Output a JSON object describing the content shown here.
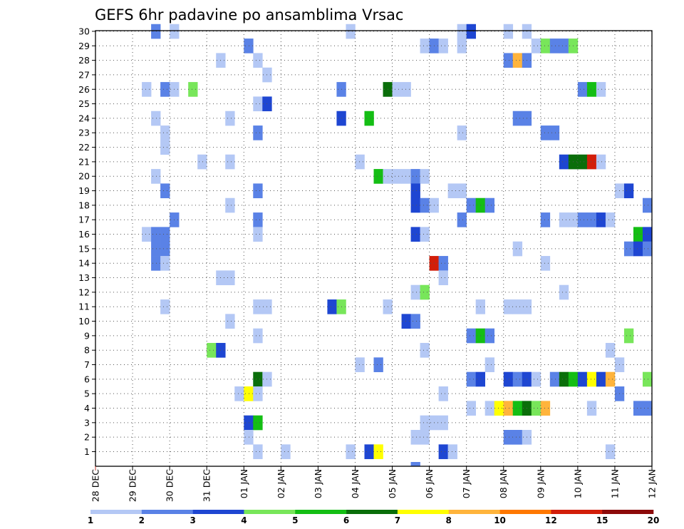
{
  "chart_data": {
    "type": "heatmap",
    "title": "GEFS 6hr padavine po ansamblima Vrsac",
    "xlabel": "",
    "ylabel": "",
    "x_tick_labels": [
      "28 DEC",
      "29 DEC",
      "30 DEC",
      "31 DEC",
      "01 JAN",
      "02 JAN",
      "03 JAN",
      "04 JAN",
      "05 JAN",
      "06 JAN",
      "07 JAN",
      "08 JAN",
      "09 JAN",
      "10 JAN",
      "11 JAN",
      "12 JAN"
    ],
    "x_steps": 60,
    "steps_per_day": 4,
    "y_tick_labels": [
      "1",
      "2",
      "3",
      "4",
      "5",
      "6",
      "7",
      "8",
      "9",
      "10",
      "11",
      "12",
      "13",
      "14",
      "15",
      "16",
      "17",
      "18",
      "19",
      "20",
      "21",
      "22",
      "23",
      "24",
      "25",
      "26",
      "27",
      "28",
      "29",
      "30"
    ],
    "grid": true,
    "colorbar": {
      "thresholds": [
        "1",
        "2",
        "3",
        "4",
        "5",
        "6",
        "7",
        "8",
        "10",
        "12",
        "15",
        "20"
      ],
      "colors": [
        "#b4c8f5",
        "#5a82e6",
        "#1e46d2",
        "#78e65a",
        "#14be14",
        "#0a6e0a",
        "#ffff00",
        "#ffb43c",
        "#ff7800",
        "#d21e0a",
        "#8c0a0a"
      ]
    },
    "cells": [
      [
        30,
        6,
        1
      ],
      [
        30,
        8,
        0
      ],
      [
        30,
        27,
        0
      ],
      [
        30,
        39,
        0
      ],
      [
        30,
        40,
        2
      ],
      [
        30,
        44,
        0
      ],
      [
        30,
        46,
        0
      ],
      [
        29,
        16,
        1
      ],
      [
        29,
        35,
        0
      ],
      [
        29,
        36,
        1
      ],
      [
        29,
        37,
        0
      ],
      [
        29,
        39,
        0
      ],
      [
        29,
        47,
        0
      ],
      [
        29,
        48,
        3
      ],
      [
        29,
        49,
        1
      ],
      [
        29,
        50,
        1
      ],
      [
        29,
        51,
        3
      ],
      [
        28,
        13,
        0
      ],
      [
        28,
        17,
        0
      ],
      [
        28,
        44,
        1
      ],
      [
        28,
        45,
        7
      ],
      [
        28,
        46,
        1
      ],
      [
        27,
        18,
        0
      ],
      [
        26,
        5,
        0
      ],
      [
        26,
        7,
        1
      ],
      [
        26,
        8,
        0
      ],
      [
        26,
        10,
        3
      ],
      [
        26,
        26,
        1
      ],
      [
        26,
        31,
        5
      ],
      [
        26,
        32,
        0
      ],
      [
        26,
        33,
        0
      ],
      [
        26,
        52,
        1
      ],
      [
        26,
        53,
        4
      ],
      [
        26,
        54,
        0
      ],
      [
        25,
        17,
        0
      ],
      [
        25,
        18,
        2
      ],
      [
        24,
        6,
        0
      ],
      [
        24,
        14,
        0
      ],
      [
        24,
        26,
        2
      ],
      [
        24,
        29,
        4
      ],
      [
        24,
        45,
        1
      ],
      [
        24,
        46,
        1
      ],
      [
        23,
        7,
        0
      ],
      [
        23,
        17,
        1
      ],
      [
        23,
        39,
        0
      ],
      [
        23,
        48,
        1
      ],
      [
        23,
        49,
        1
      ],
      [
        22,
        7,
        0
      ],
      [
        21,
        11,
        0
      ],
      [
        21,
        14,
        0
      ],
      [
        21,
        28,
        0
      ],
      [
        21,
        50,
        2
      ],
      [
        21,
        51,
        5
      ],
      [
        21,
        52,
        5
      ],
      [
        21,
        53,
        9
      ],
      [
        21,
        54,
        0
      ],
      [
        20,
        6,
        0
      ],
      [
        20,
        30,
        4
      ],
      [
        20,
        31,
        0
      ],
      [
        20,
        32,
        0
      ],
      [
        20,
        33,
        0
      ],
      [
        20,
        34,
        1
      ],
      [
        20,
        35,
        0
      ],
      [
        19,
        7,
        1
      ],
      [
        19,
        17,
        1
      ],
      [
        19,
        34,
        2
      ],
      [
        19,
        38,
        0
      ],
      [
        19,
        39,
        0
      ],
      [
        19,
        56,
        0
      ],
      [
        19,
        57,
        2
      ],
      [
        18,
        14,
        0
      ],
      [
        18,
        34,
        2
      ],
      [
        18,
        35,
        1
      ],
      [
        18,
        36,
        0
      ],
      [
        18,
        40,
        1
      ],
      [
        18,
        41,
        4
      ],
      [
        18,
        42,
        1
      ],
      [
        18,
        59,
        1
      ],
      [
        17,
        8,
        1
      ],
      [
        17,
        17,
        1
      ],
      [
        17,
        39,
        1
      ],
      [
        17,
        48,
        1
      ],
      [
        17,
        50,
        0
      ],
      [
        17,
        51,
        0
      ],
      [
        17,
        52,
        1
      ],
      [
        17,
        53,
        1
      ],
      [
        17,
        54,
        2
      ],
      [
        17,
        55,
        0
      ],
      [
        16,
        5,
        0
      ],
      [
        16,
        6,
        1
      ],
      [
        16,
        7,
        1
      ],
      [
        16,
        17,
        0
      ],
      [
        16,
        34,
        2
      ],
      [
        16,
        35,
        0
      ],
      [
        16,
        58,
        4
      ],
      [
        16,
        59,
        2
      ],
      [
        15,
        6,
        1
      ],
      [
        15,
        7,
        1
      ],
      [
        15,
        45,
        0
      ],
      [
        15,
        57,
        1
      ],
      [
        15,
        58,
        2
      ],
      [
        15,
        59,
        1
      ],
      [
        14,
        6,
        1
      ],
      [
        14,
        7,
        0
      ],
      [
        14,
        36,
        9
      ],
      [
        14,
        37,
        1
      ],
      [
        14,
        48,
        0
      ],
      [
        13,
        13,
        0
      ],
      [
        13,
        14,
        0
      ],
      [
        13,
        37,
        0
      ],
      [
        12,
        34,
        0
      ],
      [
        12,
        35,
        3
      ],
      [
        12,
        50,
        0
      ],
      [
        11,
        7,
        0
      ],
      [
        11,
        17,
        0
      ],
      [
        11,
        18,
        0
      ],
      [
        11,
        25,
        2
      ],
      [
        11,
        26,
        3
      ],
      [
        11,
        31,
        0
      ],
      [
        11,
        41,
        0
      ],
      [
        11,
        44,
        0
      ],
      [
        11,
        45,
        0
      ],
      [
        11,
        46,
        0
      ],
      [
        10,
        14,
        0
      ],
      [
        10,
        33,
        2
      ],
      [
        10,
        34,
        1
      ],
      [
        9,
        17,
        0
      ],
      [
        9,
        40,
        1
      ],
      [
        9,
        41,
        4
      ],
      [
        9,
        42,
        1
      ],
      [
        9,
        57,
        3
      ],
      [
        8,
        12,
        3
      ],
      [
        8,
        13,
        2
      ],
      [
        8,
        35,
        0
      ],
      [
        8,
        55,
        0
      ],
      [
        7,
        28,
        0
      ],
      [
        7,
        30,
        1
      ],
      [
        7,
        42,
        0
      ],
      [
        7,
        56,
        0
      ],
      [
        6,
        17,
        5
      ],
      [
        6,
        18,
        0
      ],
      [
        6,
        40,
        1
      ],
      [
        6,
        41,
        2
      ],
      [
        6,
        44,
        2
      ],
      [
        6,
        45,
        1
      ],
      [
        6,
        46,
        2
      ],
      [
        6,
        47,
        0
      ],
      [
        6,
        49,
        1
      ],
      [
        6,
        50,
        5
      ],
      [
        6,
        51,
        4
      ],
      [
        6,
        52,
        2
      ],
      [
        6,
        53,
        6
      ],
      [
        6,
        54,
        2
      ],
      [
        6,
        55,
        7
      ],
      [
        6,
        59,
        3
      ],
      [
        5,
        15,
        0
      ],
      [
        5,
        16,
        6
      ],
      [
        5,
        17,
        0
      ],
      [
        5,
        37,
        0
      ],
      [
        5,
        56,
        1
      ],
      [
        4,
        40,
        0
      ],
      [
        4,
        42,
        0
      ],
      [
        4,
        43,
        6
      ],
      [
        4,
        44,
        7
      ],
      [
        4,
        45,
        4
      ],
      [
        4,
        46,
        5
      ],
      [
        4,
        47,
        3
      ],
      [
        4,
        48,
        7
      ],
      [
        4,
        53,
        0
      ],
      [
        4,
        58,
        1
      ],
      [
        4,
        59,
        1
      ],
      [
        3,
        16,
        2
      ],
      [
        3,
        17,
        4
      ],
      [
        3,
        35,
        0
      ],
      [
        3,
        36,
        0
      ],
      [
        3,
        37,
        0
      ],
      [
        2,
        16,
        0
      ],
      [
        2,
        34,
        0
      ],
      [
        2,
        35,
        0
      ],
      [
        2,
        44,
        1
      ],
      [
        2,
        45,
        1
      ],
      [
        2,
        46,
        0
      ],
      [
        1,
        17,
        0
      ],
      [
        1,
        20,
        0
      ],
      [
        1,
        27,
        0
      ],
      [
        1,
        29,
        2
      ],
      [
        1,
        30,
        6
      ],
      [
        1,
        37,
        2
      ],
      [
        1,
        38,
        0
      ],
      [
        1,
        55,
        0
      ],
      [
        0,
        34,
        1
      ]
    ]
  }
}
